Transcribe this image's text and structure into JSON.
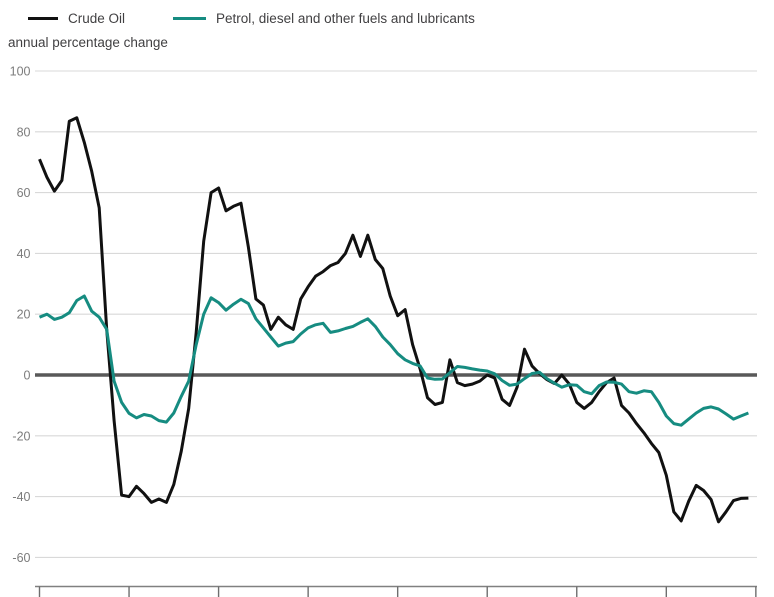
{
  "legend": [
    {
      "id": "crude-oil",
      "label": "Crude Oil",
      "color": "#111111"
    },
    {
      "id": "petrol",
      "label": "Petrol, diesel and other fuels and lubricants",
      "color": "#168c81"
    }
  ],
  "subtitle": "annual percentage change",
  "colors": {
    "gridline": "#d9d9d9",
    "zero_line": "#595959",
    "axis_line": "#808080",
    "tick": "#6e6e6e",
    "tick_label": "#7c7c7c",
    "text": "#414042",
    "background": "#ffffff"
  },
  "chart_data": {
    "type": "line",
    "title": "",
    "ylabel": "annual percentage change",
    "ylim": [
      -60,
      100
    ],
    "y_ticks": [
      100,
      80,
      60,
      40,
      20,
      0,
      -20,
      -40,
      -60
    ],
    "grid": "horizontal",
    "legend_position": "top-left",
    "x_axis": {
      "labels_visible": false,
      "tick_count": 9,
      "n_points": 96,
      "x_unit": "month index (tick labels cropped out of screenshot)"
    },
    "series": [
      {
        "name": "Crude Oil",
        "id": "crude-oil",
        "color": "#111111",
        "values": [
          71,
          65,
          60.5,
          64,
          83.5,
          84.6,
          76.5,
          67,
          55,
          15,
          -15,
          -39.5,
          -40,
          -36.6,
          -39,
          -41.9,
          -40.8,
          -41.9,
          -36,
          -25,
          -11,
          14,
          44,
          60,
          61.5,
          54,
          55.5,
          56.5,
          42,
          25,
          23,
          15,
          19,
          16.5,
          15,
          25,
          29,
          32.5,
          34,
          36,
          37,
          40,
          46,
          39,
          46,
          38,
          35,
          26,
          19.5,
          21.5,
          10,
          2,
          -7.5,
          -9.7,
          -9,
          5,
          -2.5,
          -3.5,
          -3,
          -2,
          0,
          -1,
          -8,
          -10,
          -4,
          8.5,
          3,
          0.5,
          -1.5,
          -2.8,
          0,
          -3,
          -9,
          -11,
          -9,
          -5.5,
          -2.5,
          -1,
          -10,
          -12.5,
          -16,
          -19,
          -22.5,
          -25.5,
          -33,
          -45,
          -48,
          -41.5,
          -36.3,
          -38,
          -41,
          -48.3,
          -45,
          -41.3,
          -40.6,
          -40.5
        ]
      },
      {
        "name": "Petrol, diesel and other fuels and lubricants",
        "id": "petrol",
        "color": "#168c81",
        "values": [
          19,
          20,
          18.3,
          19,
          20.5,
          24.5,
          26,
          21,
          19,
          15,
          -2,
          -9,
          -12.6,
          -14.1,
          -13,
          -13.5,
          -15,
          -15.5,
          -12.5,
          -7,
          -2,
          10,
          20,
          25.4,
          23.8,
          21.3,
          23.3,
          24.9,
          23.5,
          18.5,
          15.5,
          12.5,
          9.5,
          10.5,
          11,
          13.5,
          15.5,
          16.5,
          17,
          14,
          14.5,
          15.3,
          16,
          17.3,
          18.5,
          16,
          12.5,
          10,
          7,
          5,
          3.8,
          3,
          -1,
          -1.4,
          -1.3,
          0.8,
          2.8,
          2.5,
          2,
          1.6,
          1.3,
          0.4,
          -1.8,
          -3.4,
          -3,
          -1.2,
          0.5,
          0.9,
          -1.2,
          -2.7,
          -4,
          -3.2,
          -3.4,
          -5.5,
          -6.2,
          -3.5,
          -2.3,
          -2.4,
          -3,
          -5.5,
          -6,
          -5.2,
          -5.5,
          -9,
          -13.5,
          -16,
          -16.5,
          -14.5,
          -12.5,
          -11,
          -10.5,
          -11.2,
          -12.8,
          -14.5,
          -13.5,
          -12.5
        ]
      }
    ]
  }
}
